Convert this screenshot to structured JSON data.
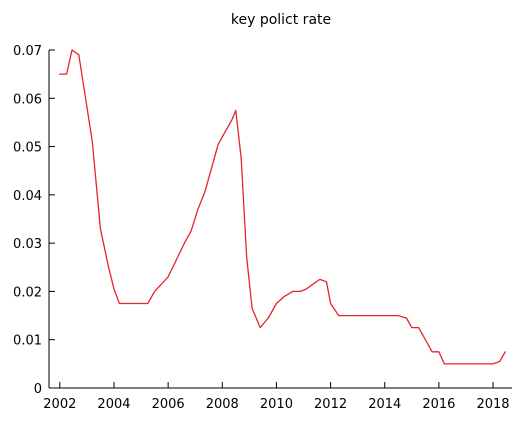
{
  "chart_data": {
    "type": "line",
    "title": "key polict rate",
    "xlabel": "",
    "ylabel": "",
    "xlim": [
      2001.6,
      2018.7
    ],
    "ylim": [
      0,
      0.07
    ],
    "grid": false,
    "legend": "none",
    "x_ticks": [
      2002,
      2004,
      2006,
      2008,
      2010,
      2012,
      2014,
      2016,
      2018
    ],
    "x_tick_labels": [
      "2002",
      "2004",
      "2006",
      "2008",
      "2010",
      "2012",
      "2014",
      "2016",
      "2018"
    ],
    "y_ticks": [
      0,
      0.01,
      0.02,
      0.03,
      0.04,
      0.05,
      0.06,
      0.07
    ],
    "y_tick_labels": [
      "0",
      "0.01",
      "0.02",
      "0.03",
      "0.04",
      "0.05",
      "0.06",
      "0.07"
    ],
    "series": [
      {
        "color": "#e8232a",
        "x": [
          2002.0,
          2002.25,
          2002.45,
          2002.7,
          2002.95,
          2003.2,
          2003.5,
          2003.8,
          2004.0,
          2004.2,
          2004.5,
          2004.8,
          2005.0,
          2005.25,
          2005.5,
          2005.75,
          2006.0,
          2006.3,
          2006.6,
          2006.85,
          2007.1,
          2007.35,
          2007.6,
          2007.85,
          2008.1,
          2008.35,
          2008.5,
          2008.7,
          2008.9,
          2009.1,
          2009.4,
          2009.7,
          2010.0,
          2010.3,
          2010.6,
          2010.9,
          2011.1,
          2011.35,
          2011.6,
          2011.85,
          2012.0,
          2012.3,
          2012.6,
          2013.0,
          2013.5,
          2014.0,
          2014.5,
          2014.8,
          2015.0,
          2015.25,
          2015.5,
          2015.75,
          2016.0,
          2016.2,
          2016.5,
          2017.0,
          2017.5,
          2018.0,
          2018.25,
          2018.45
        ],
        "y": [
          0.065,
          0.065,
          0.07,
          0.069,
          0.06,
          0.051,
          0.033,
          0.025,
          0.0205,
          0.0175,
          0.0175,
          0.0175,
          0.0175,
          0.0175,
          0.02,
          0.0215,
          0.023,
          0.0265,
          0.03,
          0.0325,
          0.037,
          0.0405,
          0.0455,
          0.0505,
          0.053,
          0.0555,
          0.0575,
          0.0475,
          0.027,
          0.0165,
          0.0125,
          0.0145,
          0.0175,
          0.019,
          0.02,
          0.02,
          0.0205,
          0.0215,
          0.0225,
          0.022,
          0.0175,
          0.015,
          0.015,
          0.015,
          0.015,
          0.015,
          0.015,
          0.0145,
          0.0125,
          0.0125,
          0.01,
          0.0075,
          0.0075,
          0.005,
          0.005,
          0.005,
          0.005,
          0.005,
          0.0055,
          0.0075
        ]
      }
    ]
  }
}
